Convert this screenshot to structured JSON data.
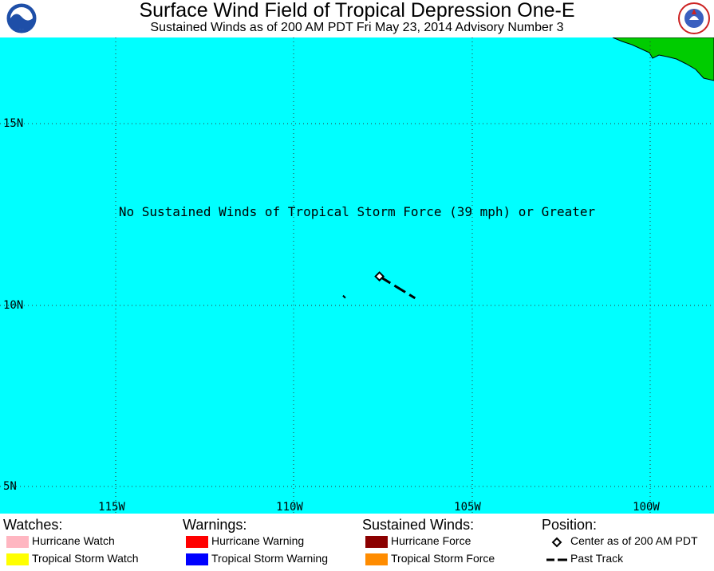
{
  "header": {
    "title": "Surface Wind Field of Tropical Depression One-E",
    "subtitle": "Sustained Winds as of 200 AM PDT Fri May 23, 2014    Advisory Number 3",
    "left_logo": "noaa-logo",
    "right_logo": "nws-logo"
  },
  "map": {
    "ocean_color": "#00ffff",
    "land_color": "#00cc00",
    "note": "No Sustained Winds of Tropical Storm Force (39 mph) or Greater",
    "lat_labels": [
      "15N",
      "10N",
      "5N"
    ],
    "lon_labels": [
      "115W",
      "110W",
      "105W",
      "100W"
    ],
    "storm_center": {
      "lat": 10.8,
      "lon": 107.6,
      "marker": "diamond-icon"
    },
    "past_track": [
      {
        "lat": 10.8,
        "lon": 107.6
      },
      {
        "lat": 10.2,
        "lon": 106.6
      }
    ],
    "track_fragment": {
      "lat": 10.25,
      "lon": 108.6
    }
  },
  "legend": {
    "watches": {
      "heading": "Watches:",
      "items": [
        {
          "label": "Hurricane Watch",
          "color": "#ffb6c1"
        },
        {
          "label": "Tropical Storm Watch",
          "color": "#ffff00"
        }
      ]
    },
    "warnings": {
      "heading": "Warnings:",
      "items": [
        {
          "label": "Hurricane Warning",
          "color": "#ff0000"
        },
        {
          "label": "Tropical Storm Warning",
          "color": "#0000ff"
        }
      ]
    },
    "winds": {
      "heading": "Sustained Winds:",
      "items": [
        {
          "label": "Hurricane Force",
          "color": "#8b0000"
        },
        {
          "label": "Tropical Storm Force",
          "color": "#ff8c00"
        }
      ]
    },
    "position": {
      "heading": "Position:",
      "items": [
        {
          "label": "Center as of 200 AM PDT",
          "icon": "diamond-icon"
        },
        {
          "label": "Past Track",
          "icon": "dashed-line-icon"
        }
      ]
    }
  }
}
